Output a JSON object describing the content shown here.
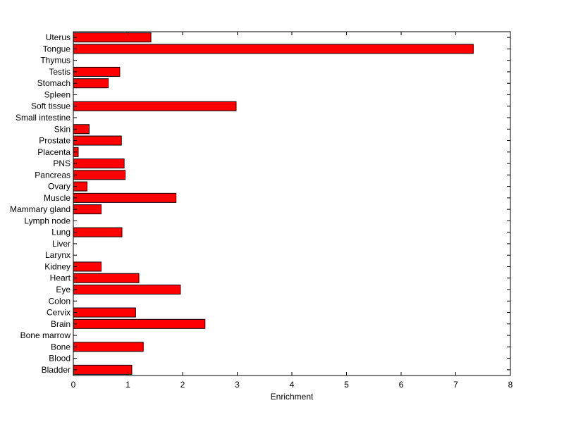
{
  "chart_data": {
    "type": "bar",
    "orientation": "horizontal",
    "title": "",
    "xlabel": "Enrichment",
    "ylabel": "",
    "xlim": [
      0,
      8
    ],
    "xticks": [
      "0",
      "1",
      "2",
      "3",
      "4",
      "5",
      "6",
      "7",
      "8"
    ],
    "grid": false,
    "bar_color": "#ff0000",
    "categories": [
      "Uterus",
      "Tongue",
      "Thymus",
      "Testis",
      "Stomach",
      "Spleen",
      "Soft tissue",
      "Small intestine",
      "Skin",
      "Prostate",
      "Placenta",
      "PNS",
      "Pancreas",
      "Ovary",
      "Muscle",
      "Mammary gland",
      "Lymph node",
      "Lung",
      "Liver",
      "Larynx",
      "Kidney",
      "Heart",
      "Eye",
      "Colon",
      "Cervix",
      "Brain",
      "Bone marrow",
      "Bone",
      "Blood",
      "Bladder"
    ],
    "values": [
      1.42,
      7.32,
      0,
      0.85,
      0.64,
      0,
      2.98,
      0,
      0.29,
      0.88,
      0.09,
      0.93,
      0.95,
      0.25,
      1.88,
      0.51,
      0,
      0.89,
      0,
      0,
      0.51,
      1.2,
      1.96,
      0,
      1.14,
      2.41,
      0,
      1.28,
      0,
      1.07
    ]
  }
}
